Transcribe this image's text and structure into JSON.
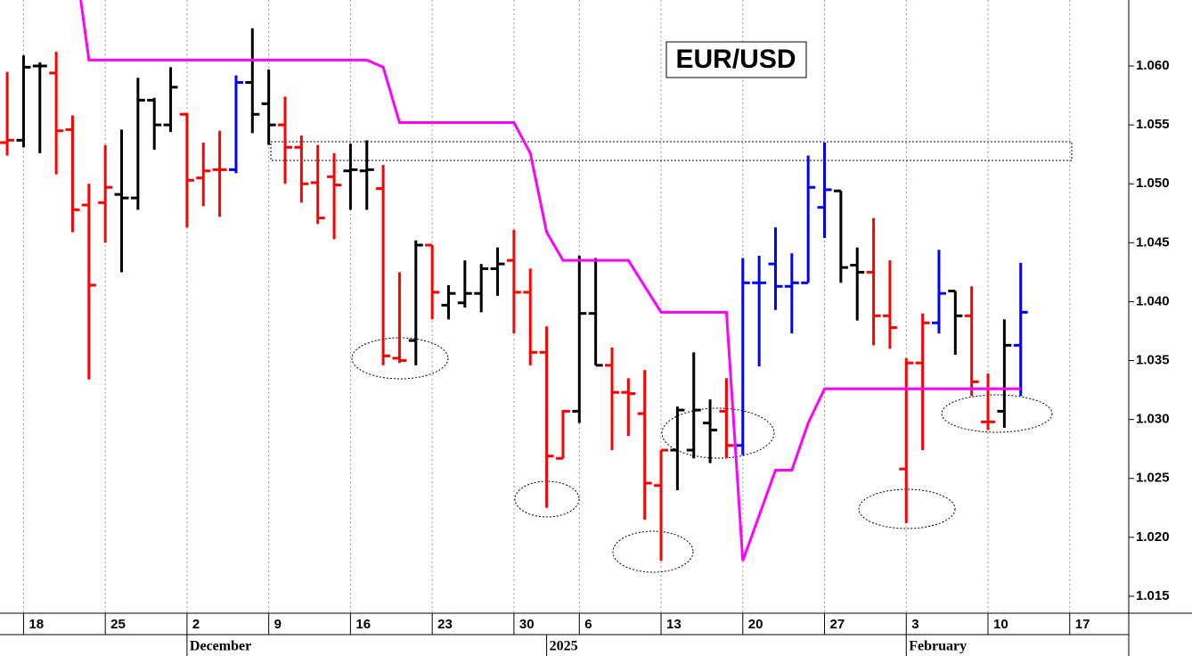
{
  "chart_data": {
    "type": "ohlc",
    "title": "EUR/USD",
    "xlim": [
      -0.44,
      68.61
    ],
    "ylim": [
      1.01356,
      1.0656
    ],
    "grid": true,
    "yticks": [
      {
        "value": 1.015,
        "label": "1.015"
      },
      {
        "value": 1.02,
        "label": "1.020"
      },
      {
        "value": 1.025,
        "label": "1.025"
      },
      {
        "value": 1.03,
        "label": "1.030"
      },
      {
        "value": 1.035,
        "label": "1.035"
      },
      {
        "value": 1.04,
        "label": "1.040"
      },
      {
        "value": 1.045,
        "label": "1.045"
      },
      {
        "value": 1.05,
        "label": "1.050"
      },
      {
        "value": 1.055,
        "label": "1.055"
      },
      {
        "value": 1.06,
        "label": "1.060"
      }
    ],
    "xticks": [
      {
        "value": 1,
        "label": "18"
      },
      {
        "value": 6,
        "label": "25"
      },
      {
        "value": 11,
        "label": "2"
      },
      {
        "value": 16,
        "label": "9"
      },
      {
        "value": 21,
        "label": "16"
      },
      {
        "value": 26,
        "label": "23"
      },
      {
        "value": 31,
        "label": "30"
      },
      {
        "value": 35,
        "label": "6"
      },
      {
        "value": 40,
        "label": "13"
      },
      {
        "value": 45,
        "label": "20"
      },
      {
        "value": 50,
        "label": "27"
      },
      {
        "value": 55,
        "label": "3"
      },
      {
        "value": 60,
        "label": "10"
      },
      {
        "value": 65,
        "label": "17"
      }
    ],
    "month_labels": [
      {
        "value": 11,
        "label": "December"
      },
      {
        "value": 33,
        "label": "2025"
      },
      {
        "value": 55,
        "label": "February"
      }
    ],
    "x": [
      0,
      1,
      2,
      3,
      4,
      5,
      6,
      7,
      8,
      9,
      10,
      11,
      12,
      13,
      14,
      15,
      16,
      17,
      18,
      19,
      20,
      21,
      22,
      23,
      24,
      25,
      26,
      27,
      28,
      29,
      30,
      31,
      32,
      33,
      34,
      35,
      36,
      37,
      38,
      39,
      40,
      41,
      42,
      43,
      44,
      45,
      46,
      47,
      48,
      49,
      50,
      51,
      52,
      53,
      54,
      55,
      56,
      57,
      58,
      59,
      60,
      61,
      62
    ],
    "open": [
      1.0535,
      1.0537,
      1.06,
      1.0594,
      1.0546,
      1.0482,
      1.0484,
      1.0491,
      1.0488,
      1.0571,
      1.055,
      1.0559,
      1.0505,
      1.0512,
      1.0512,
      1.0586,
      1.0568,
      1.055,
      1.0531,
      1.0501,
      1.0506,
      1.0511,
      1.0511,
      1.0496,
      1.0352,
      1.0367,
      1.0448,
      1.0397,
      1.0399,
      1.0407,
      1.0428,
      1.0435,
      1.0408,
      1.0357,
      1.0267,
      1.0307,
      1.039,
      1.0346,
      1.0323,
      1.0305,
      1.0244,
      1.0274,
      1.0274,
      1.0297,
      1.0307,
      1.0278,
      1.0416,
      1.0432,
      1.0413,
      1.0416,
      1.048,
      1.0494,
      1.0431,
      1.0425,
      1.0388,
      1.0258,
      1.0348,
      1.0382,
      1.0409,
      1.0388,
      1.0298,
      1.0307,
      1.0363
    ],
    "high": [
      1.0595,
      1.0609,
      1.0603,
      1.0612,
      1.0558,
      1.05,
      1.0533,
      1.0546,
      1.059,
      1.0573,
      1.0599,
      1.056,
      1.0535,
      1.0545,
      1.0592,
      1.0632,
      1.0597,
      1.0574,
      1.0541,
      1.0533,
      1.0526,
      1.0534,
      1.0537,
      1.0516,
      1.0425,
      1.0452,
      1.0448,
      1.0414,
      1.0435,
      1.0432,
      1.0446,
      1.0461,
      1.0428,
      1.0379,
      1.0308,
      1.0439,
      1.0437,
      1.0361,
      1.0335,
      1.0342,
      1.0274,
      1.0311,
      1.0357,
      1.0317,
      1.0335,
      1.0437,
      1.0439,
      1.0463,
      1.0441,
      1.0524,
      1.0535,
      1.0494,
      1.0446,
      1.0471,
      1.0435,
      1.0352,
      1.039,
      1.0444,
      1.0409,
      1.0413,
      1.0339,
      1.0385,
      1.0433
    ],
    "low": [
      1.0524,
      1.0531,
      1.0526,
      1.0508,
      1.0459,
      1.0334,
      1.045,
      1.0425,
      1.0478,
      1.0529,
      1.0544,
      1.0463,
      1.0481,
      1.0472,
      1.0509,
      1.0543,
      1.0533,
      1.05,
      1.0484,
      1.0466,
      1.0453,
      1.0478,
      1.0478,
      1.0346,
      1.0348,
      1.0346,
      1.0385,
      1.0385,
      1.0395,
      1.0391,
      1.0405,
      1.0373,
      1.0346,
      1.0225,
      1.0267,
      1.0297,
      1.0346,
      1.0274,
      1.0286,
      1.0215,
      1.018,
      1.024,
      1.0267,
      1.0263,
      1.0267,
      1.027,
      1.0345,
      1.0393,
      1.0373,
      1.0416,
      1.0454,
      1.0416,
      1.0384,
      1.0363,
      1.036,
      1.0212,
      1.0274,
      1.0373,
      1.0355,
      1.032,
      1.0291,
      1.0293,
      1.032
    ],
    "close": [
      1.0537,
      1.0599,
      1.06,
      1.0545,
      1.0478,
      1.0414,
      1.0497,
      1.0488,
      1.0571,
      1.055,
      1.0582,
      1.0503,
      1.0511,
      1.0512,
      1.0586,
      1.0559,
      1.055,
      1.0531,
      1.05,
      1.0471,
      1.0499,
      1.0512,
      1.0512,
      1.0354,
      1.035,
      1.0448,
      1.0408,
      1.0407,
      1.0407,
      1.0428,
      1.0432,
      1.0408,
      1.0357,
      1.0269,
      1.0307,
      1.039,
      1.0346,
      1.0323,
      1.0322,
      1.0246,
      1.0274,
      1.0308,
      1.0308,
      1.0291,
      1.0278,
      1.0416,
      1.0416,
      1.0413,
      1.0416,
      1.0497,
      1.0495,
      1.0429,
      1.0425,
      1.0388,
      1.0378,
      1.0348,
      1.0382,
      1.0407,
      1.0388,
      1.0332,
      1.0298,
      1.0363,
      1.0391
    ],
    "colors": [
      "#ff0000",
      "#000000",
      "#000000",
      "#ff0000",
      "#ff0000",
      "#ff0000",
      "#ff0000",
      "#000000",
      "#000000",
      "#000000",
      "#000000",
      "#ff0000",
      "#ff0000",
      "#ff0000",
      "#0000ff",
      "#000000",
      "#000000",
      "#ff0000",
      "#ff0000",
      "#ff0000",
      "#ff0000",
      "#000000",
      "#000000",
      "#ff0000",
      "#ff0000",
      "#000000",
      "#ff0000",
      "#000000",
      "#000000",
      "#000000",
      "#000000",
      "#ff0000",
      "#ff0000",
      "#ff0000",
      "#ff0000",
      "#000000",
      "#000000",
      "#ff0000",
      "#ff0000",
      "#ff0000",
      "#ff0000",
      "#000000",
      "#000000",
      "#000000",
      "#ff0000",
      "#0000ff",
      "#0000ff",
      "#0000ff",
      "#0000ff",
      "#0000ff",
      "#0000ff",
      "#000000",
      "#000000",
      "#ff0000",
      "#ff0000",
      "#ff0000",
      "#ff0000",
      "#0000ff",
      "#000000",
      "#ff0000",
      "#ff0000",
      "#000000",
      "#0000ff"
    ],
    "stop_line": {
      "color": "#ff00ff",
      "x": [
        4.5,
        5,
        22,
        23,
        24,
        31,
        32,
        33,
        34,
        38,
        40,
        44,
        45,
        47,
        48,
        49,
        50,
        62
      ],
      "values": [
        1.0656,
        1.0605,
        1.0605,
        1.0599,
        1.0552,
        1.0552,
        1.0526,
        1.0459,
        1.0435,
        1.0435,
        1.0391,
        1.0391,
        1.018,
        1.0257,
        1.0257,
        1.0297,
        1.0326,
        1.0326
      ]
    }
  }
}
